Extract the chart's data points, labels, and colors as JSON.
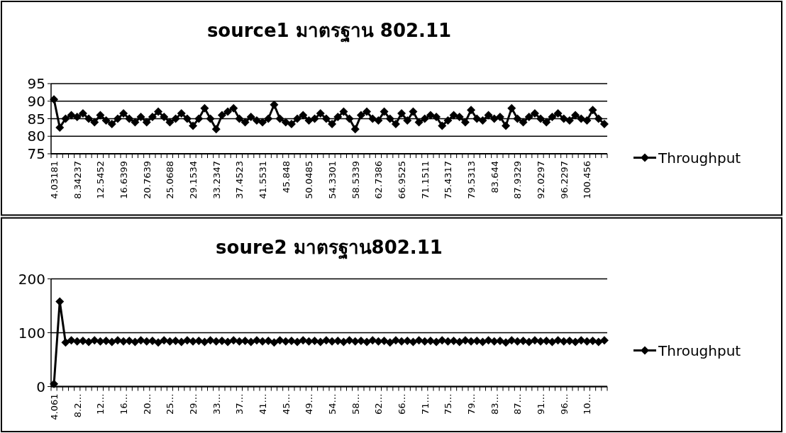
{
  "chart_data": [
    {
      "type": "line",
      "title": "source1 มาตรฐาน 802.11",
      "categories": [
        "4.03181",
        null,
        null,
        null,
        "8.34237",
        null,
        null,
        null,
        "12.5452",
        null,
        null,
        null,
        "16.6399",
        null,
        null,
        null,
        "20.7639",
        null,
        null,
        null,
        "25.0688",
        null,
        null,
        null,
        "29.1534",
        null,
        null,
        null,
        "33.2347",
        null,
        null,
        null,
        "37.4523",
        null,
        null,
        null,
        "41.5531",
        null,
        null,
        null,
        "45.848",
        null,
        null,
        null,
        "50.0485",
        null,
        null,
        null,
        "54.3301",
        null,
        null,
        null,
        "58.5339",
        null,
        null,
        null,
        "62.7386",
        null,
        null,
        null,
        "66.9525",
        null,
        null,
        null,
        "71.1511",
        null,
        null,
        null,
        "75.4317",
        null,
        null,
        null,
        "79.5313",
        null,
        null,
        null,
        "83.644",
        null,
        null,
        null,
        "87.9329",
        null,
        null,
        null,
        "92.0297",
        null,
        null,
        null,
        "96.2297",
        null,
        null,
        null,
        "100.456",
        null,
        null,
        null
      ],
      "series": [
        {
          "name": "Throughput",
          "color": "#000000",
          "values": [
            90.5,
            82.5,
            85,
            86,
            85.5,
            86.5,
            85,
            84,
            86,
            84.5,
            83.5,
            85,
            86.5,
            85,
            84,
            85.5,
            84,
            85.5,
            87,
            85.5,
            84,
            85,
            86.5,
            85,
            83,
            85,
            88,
            85,
            82,
            86,
            87,
            88,
            85,
            84,
            85.5,
            84.5,
            84,
            85,
            89,
            85,
            84,
            83.5,
            85,
            86,
            84.5,
            85,
            86.5,
            85,
            83.5,
            85.5,
            87,
            85,
            82,
            86,
            87,
            85,
            84.5,
            87,
            85,
            83.5,
            86.5,
            84.5,
            87,
            84,
            85,
            86,
            85.5,
            83,
            84.5,
            86,
            85.5,
            84,
            87.5,
            85,
            84.5,
            86,
            85,
            85.5,
            83,
            88,
            85,
            84,
            85.5,
            86.5,
            85,
            84,
            85.5,
            86.5,
            85,
            84.5,
            86,
            85,
            84.5,
            87.5,
            85,
            83.5
          ]
        }
      ],
      "ylim": [
        75,
        95
      ],
      "yticks": [
        75,
        80,
        85,
        90,
        95
      ],
      "grid": "y",
      "legend": "right",
      "marker": "diamond"
    },
    {
      "type": "line",
      "title": "soure2 มาตรฐาน802.11",
      "categories": [
        "4.061",
        null,
        null,
        null,
        "8.2…",
        null,
        null,
        null,
        "12…",
        null,
        null,
        null,
        "16…",
        null,
        null,
        null,
        "20…",
        null,
        null,
        null,
        "25…",
        null,
        null,
        null,
        "29…",
        null,
        null,
        null,
        "33…",
        null,
        null,
        null,
        "37…",
        null,
        null,
        null,
        "41…",
        null,
        null,
        null,
        "45…",
        null,
        null,
        null,
        "49…",
        null,
        null,
        null,
        "54…",
        null,
        null,
        null,
        "58…",
        null,
        null,
        null,
        "62…",
        null,
        null,
        null,
        "66…",
        null,
        null,
        null,
        "71…",
        null,
        null,
        null,
        "75…",
        null,
        null,
        null,
        "79…",
        null,
        null,
        null,
        "83…",
        null,
        null,
        null,
        "87…",
        null,
        null,
        null,
        "91…",
        null,
        null,
        null,
        "96…",
        null,
        null,
        null,
        "10…",
        null,
        null,
        null
      ],
      "series": [
        {
          "name": "Throughput",
          "color": "#000000",
          "values": [
            5,
            158,
            82,
            86,
            84,
            85,
            83,
            86,
            84,
            85,
            83,
            86,
            84,
            85,
            83,
            86,
            84,
            85,
            82,
            86,
            84,
            85,
            83,
            86,
            84,
            85,
            83,
            86,
            84,
            85,
            83,
            86,
            84,
            85,
            83,
            86,
            84,
            85,
            82,
            86,
            84,
            85,
            83,
            86,
            84,
            85,
            83,
            86,
            84,
            85,
            83,
            86,
            84,
            85,
            83,
            86,
            84,
            85,
            82,
            86,
            84,
            85,
            83,
            86,
            84,
            85,
            83,
            86,
            84,
            85,
            83,
            86,
            84,
            85,
            83,
            86,
            84,
            85,
            82,
            86,
            84,
            85,
            83,
            86,
            84,
            85,
            83,
            86,
            84,
            85,
            83,
            86,
            84,
            85,
            83,
            86
          ]
        }
      ],
      "ylim": [
        0,
        200
      ],
      "yticks": [
        0,
        100,
        200
      ],
      "grid": "y",
      "legend": "right",
      "marker": "diamond"
    }
  ]
}
